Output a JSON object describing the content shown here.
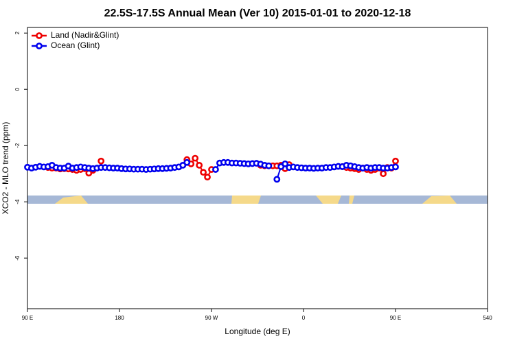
{
  "chart_data": {
    "type": "line",
    "title": "22.5S-17.5S Annual Mean (Ver 10)   2015-01-01 to 2020-12-18",
    "xlabel": "Longitude (deg E)",
    "ylabel": "XCO2 - MLO trend (ppm)",
    "x": [
      90,
      94,
      98,
      102,
      106,
      110,
      114,
      118,
      122,
      126,
      130,
      134,
      138,
      142,
      146,
      150,
      154,
      158,
      162,
      166,
      170,
      174,
      178,
      182,
      186,
      190,
      194,
      198,
      202,
      206,
      210,
      214,
      218,
      222,
      226,
      230,
      234,
      238,
      242,
      246,
      250,
      254,
      258,
      262,
      266,
      270,
      274,
      278,
      282,
      286,
      290,
      294,
      298,
      302,
      306,
      310,
      314,
      318,
      322,
      326,
      330,
      334,
      338,
      342,
      346,
      350,
      354,
      358,
      362,
      366,
      370,
      374,
      378,
      382,
      386,
      390,
      394,
      398,
      402,
      406,
      410,
      414,
      418,
      422,
      426,
      430,
      434,
      438,
      442,
      446,
      450
    ],
    "xlim": [
      90,
      540
    ],
    "xticks": [
      {
        "value": 90,
        "label": "90 E"
      },
      180,
      {
        "value": 270,
        "label": "90 W"
      },
      {
        "value": 360,
        "label": "0"
      },
      {
        "value": 450,
        "label": "90 E"
      },
      540
    ],
    "ylim": [
      -7.8,
      2.2
    ],
    "yticks": [
      2,
      0,
      -2,
      -4,
      -6
    ],
    "legend": "upper left",
    "series": [
      {
        "name": "Land (Nadir&Glint)",
        "color": "#ee0000",
        "values": [
          null,
          null,
          null,
          null,
          null,
          -2.78,
          -2.8,
          -2.8,
          -2.83,
          -2.82,
          -2.83,
          -2.85,
          -2.88,
          -2.85,
          -2.82,
          -2.98,
          -2.88,
          null,
          -2.55,
          null,
          null,
          null,
          null,
          null,
          null,
          null,
          null,
          null,
          null,
          null,
          null,
          null,
          null,
          null,
          null,
          null,
          null,
          null,
          null,
          -2.5,
          -2.65,
          -2.45,
          -2.7,
          -2.95,
          -3.12,
          -2.85,
          null,
          null,
          null,
          null,
          null,
          null,
          null,
          null,
          null,
          null,
          null,
          -2.7,
          -2.72,
          -2.72,
          -2.72,
          -2.72,
          -2.7,
          -2.82,
          -2.68,
          null,
          null,
          null,
          null,
          null,
          null,
          null,
          null,
          null,
          null,
          null,
          null,
          -2.75,
          -2.78,
          -2.8,
          -2.82,
          -2.85,
          -2.8,
          -2.85,
          -2.88,
          -2.85,
          -2.8,
          -3.0,
          -2.78,
          -2.8,
          -2.55
        ]
      },
      {
        "name": "Ocean (Glint)",
        "color": "#0000ee",
        "values": [
          -2.77,
          -2.8,
          -2.77,
          -2.74,
          -2.76,
          -2.75,
          -2.7,
          -2.78,
          -2.8,
          -2.8,
          -2.73,
          -2.8,
          -2.78,
          -2.76,
          -2.78,
          -2.8,
          -2.82,
          -2.8,
          -2.78,
          -2.78,
          -2.79,
          -2.8,
          -2.8,
          -2.82,
          -2.83,
          -2.83,
          -2.84,
          -2.84,
          -2.84,
          -2.85,
          -2.84,
          -2.83,
          -2.82,
          -2.82,
          -2.81,
          -2.8,
          -2.78,
          -2.76,
          -2.7,
          -2.6,
          null,
          null,
          null,
          null,
          null,
          null,
          -2.85,
          -2.62,
          -2.6,
          -2.6,
          -2.62,
          -2.62,
          -2.63,
          -2.64,
          -2.65,
          -2.64,
          -2.63,
          -2.66,
          -2.7,
          -2.72,
          null,
          -3.2,
          -2.75,
          -2.65,
          -2.78,
          -2.76,
          -2.78,
          -2.79,
          -2.8,
          -2.8,
          -2.81,
          -2.8,
          -2.8,
          -2.78,
          -2.78,
          -2.76,
          -2.74,
          -2.75,
          -2.7,
          -2.72,
          -2.75,
          -2.78,
          -2.8,
          -2.78,
          -2.8,
          -2.78,
          -2.78,
          -2.8,
          -2.8,
          -2.78,
          -2.76
        ]
      }
    ]
  }
}
